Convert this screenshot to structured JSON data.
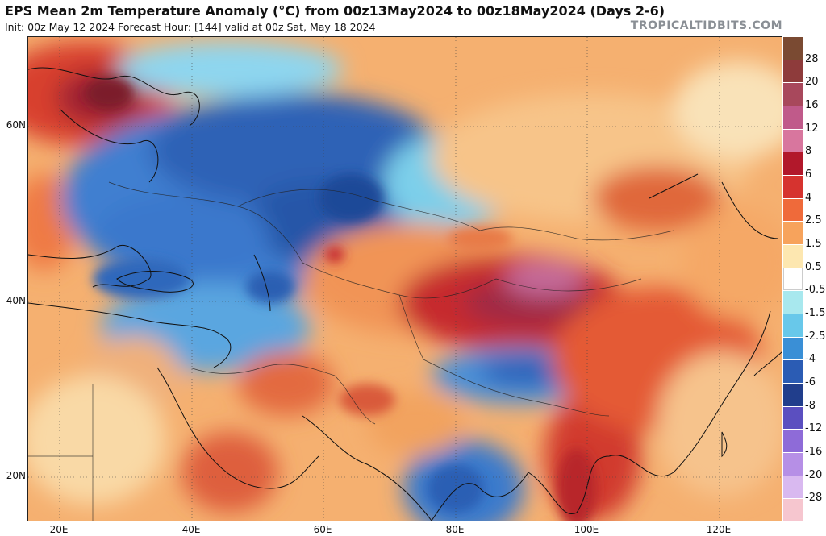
{
  "header": {
    "title": "EPS Mean 2m Temperature Anomaly (°C) from 00z13May2024 to 00z18May2024 (Days 2-6)",
    "subtitle": "Init: 00z May 12 2024   Forecast Hour: [144]   valid at 00z Sat, May 18 2024",
    "brand": "TROPICALTIDBITS.COM"
  },
  "axes": {
    "lat_labels": [
      "60N",
      "40N",
      "20N"
    ],
    "lon_labels": [
      "20E",
      "40E",
      "60E",
      "80E",
      "100E",
      "120E"
    ]
  },
  "colorbar": {
    "labels": [
      "28",
      "20",
      "16",
      "12",
      "8",
      "6",
      "4",
      "2.5",
      "1.5",
      "0.5",
      "-0.5",
      "-1.5",
      "-2.5",
      "-4",
      "-6",
      "-8",
      "-12",
      "-16",
      "-20",
      "-28"
    ],
    "colors": [
      "#7a4a32",
      "#8e3b3b",
      "#a8485c",
      "#c05a8a",
      "#d8769e",
      "#b2182b",
      "#d6332f",
      "#ef6a3a",
      "#f7a35c",
      "#fde7b0",
      "#ffffff",
      "#a8e8ee",
      "#68c8ea",
      "#3a8fd6",
      "#2b5cb4",
      "#213e8c",
      "#5b4fc0",
      "#8e6bd8",
      "#b68fe6",
      "#d9b9f0",
      "#f6c6cf"
    ]
  }
}
